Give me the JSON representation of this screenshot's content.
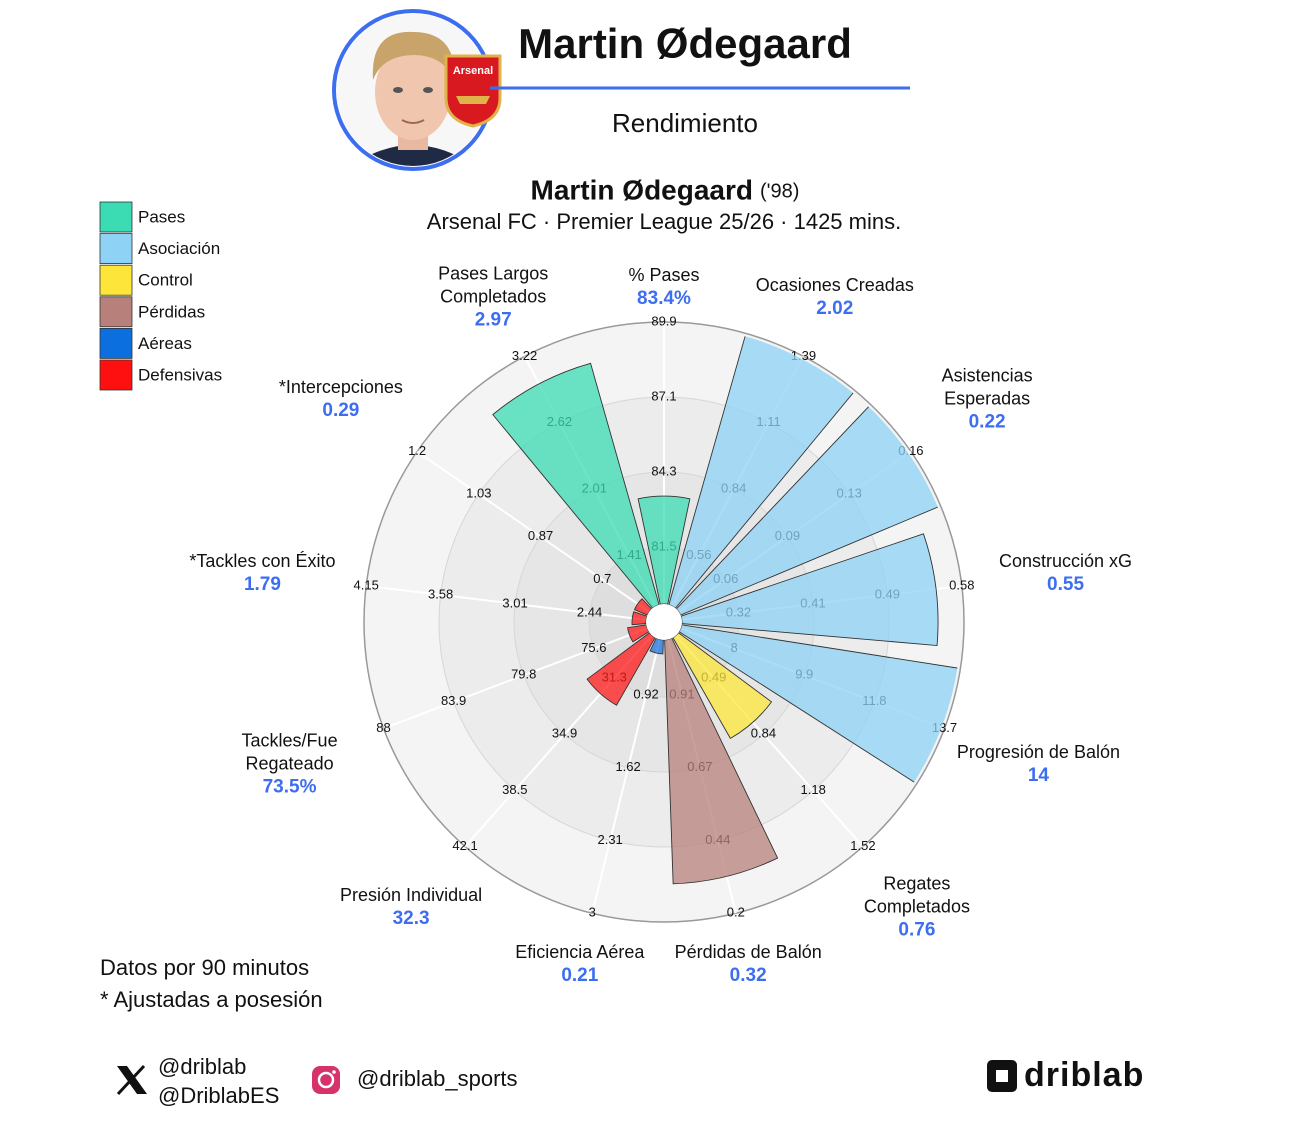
{
  "header": {
    "player_name": "Martin Ødegaard",
    "section": "Rendimiento",
    "badge_text": "Arsenal"
  },
  "chart_data": {
    "type": "polar_bar",
    "title": "Martin Ødegaard",
    "title_note": "('98)",
    "subtitle": "Arsenal FC · Premier League 25/26 · 1425 mins.",
    "categories": [
      "% Pases",
      "Ocasiones Creadas",
      "Asistencias\nEsperadas",
      "Construcción xG",
      "Progresión de Balón",
      "Regates\nCompletados",
      "Pérdidas de Balón",
      "Eficiencia Aérea",
      "Presión Individual",
      "Tackles/Fue\nRegateado",
      "*Tackles con Éxito",
      "*Intercepciones",
      "Pases Largos\nCompletados"
    ],
    "values": [
      83.4,
      2.02,
      0.22,
      0.55,
      14,
      0.76,
      0.32,
      0.21,
      32.3,
      73.5,
      1.79,
      0.29,
      2.97
    ],
    "value_labels": [
      "83.4%",
      "2.02",
      "0.22",
      "0.55",
      "14",
      "0.76",
      "0.32",
      "0.21",
      "32.3",
      "73.5%",
      "1.79",
      "0.29",
      "2.97"
    ],
    "colors": [
      "#3bdbb3",
      "#8ed3f6",
      "#8ed3f6",
      "#8ed3f6",
      "#8ed3f6",
      "#fde53a",
      "#b7807a",
      "#1f74dc",
      "#ff1a1a",
      "#ff1a1a",
      "#ff1a1a",
      "#ff1a1a",
      "#3bdbb3"
    ],
    "ticks": [
      [
        81.5,
        84.3,
        87.1,
        89.9
      ],
      [
        0.56,
        0.84,
        1.11,
        1.39
      ],
      [
        0.06,
        0.09,
        0.13,
        0.16
      ],
      [
        0.32,
        0.41,
        0.49,
        0.58
      ],
      [
        8,
        9.9,
        11.8,
        13.7
      ],
      [
        0.49,
        0.84,
        1.18,
        1.52
      ],
      [
        0.91,
        0.67,
        0.44,
        0.2
      ],
      [
        0.92,
        1.62,
        2.31,
        3
      ],
      [
        31.3,
        34.9,
        38.5,
        42.1
      ],
      [
        75.6,
        79.8,
        83.9,
        88
      ],
      [
        2.44,
        3.01,
        3.58,
        4.15
      ],
      [
        0.7,
        0.87,
        1.03,
        1.2
      ],
      [
        1.41,
        2.01,
        2.62,
        3.22
      ]
    ],
    "legend": [
      {
        "name": "Pases",
        "color": "#3bdbb3"
      },
      {
        "name": "Asociación",
        "color": "#8ed3f6"
      },
      {
        "name": "Control",
        "color": "#fde53a"
      },
      {
        "name": "Pérdidas",
        "color": "#b7807a"
      },
      {
        "name": "Aéreas",
        "color": "#0c6fe0"
      },
      {
        "name": "Defensivas",
        "color": "#ff1010"
      }
    ]
  },
  "footer": {
    "notes": [
      "Datos por 90 minutos",
      "* Ajustadas a posesión"
    ],
    "x_handles": [
      "@driblab",
      "@DriblabES"
    ],
    "instagram": "@driblab_sports",
    "brand": "driblab"
  }
}
